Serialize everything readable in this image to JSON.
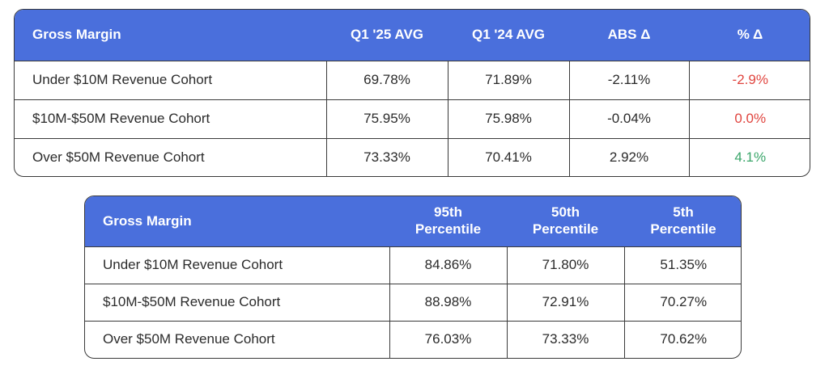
{
  "top_table": {
    "headers": [
      "Gross Margin",
      "Q1 '25 AVG",
      "Q1 '24 AVG",
      "ABS Δ",
      "% Δ"
    ],
    "rows": [
      {
        "label": "Under $10M Revenue Cohort",
        "q1_25": "69.78%",
        "q1_24": "71.89%",
        "abs": "-2.11%",
        "pct": "-2.9%"
      },
      {
        "label": "$10M-$50M Revenue Cohort",
        "q1_25": "75.95%",
        "q1_24": "75.98%",
        "abs": "-0.04%",
        "pct": "0.0%"
      },
      {
        "label": "Over $50M Revenue Cohort",
        "q1_25": "73.33%",
        "q1_24": "70.41%",
        "abs": "2.92%",
        "pct": "4.1%"
      }
    ]
  },
  "bottom_table": {
    "headers": [
      "Gross Margin",
      "95th Percentile",
      "50th Percentile",
      "5th Percentile"
    ],
    "header_lines": {
      "p95": [
        "95th",
        "Percentile"
      ],
      "p50": [
        "50th",
        "Percentile"
      ],
      "p5": [
        "5th",
        "Percentile"
      ]
    },
    "rows": [
      {
        "label": "Under $10M Revenue Cohort",
        "p95": "84.86%",
        "p50": "71.80%",
        "p5": "51.35%"
      },
      {
        "label": "$10M-$50M Revenue Cohort",
        "p95": "88.98%",
        "p50": "72.91%",
        "p5": "70.27%"
      },
      {
        "label": "Over $50M Revenue Cohort",
        "p95": "76.03%",
        "p50": "73.33%",
        "p5": "70.62%"
      }
    ]
  },
  "colors": {
    "header_bg": "#4a6fdc",
    "header_text": "#ffffff",
    "negative": "#e0453f",
    "positive": "#3aa66a",
    "border": "#3a3a3a"
  }
}
